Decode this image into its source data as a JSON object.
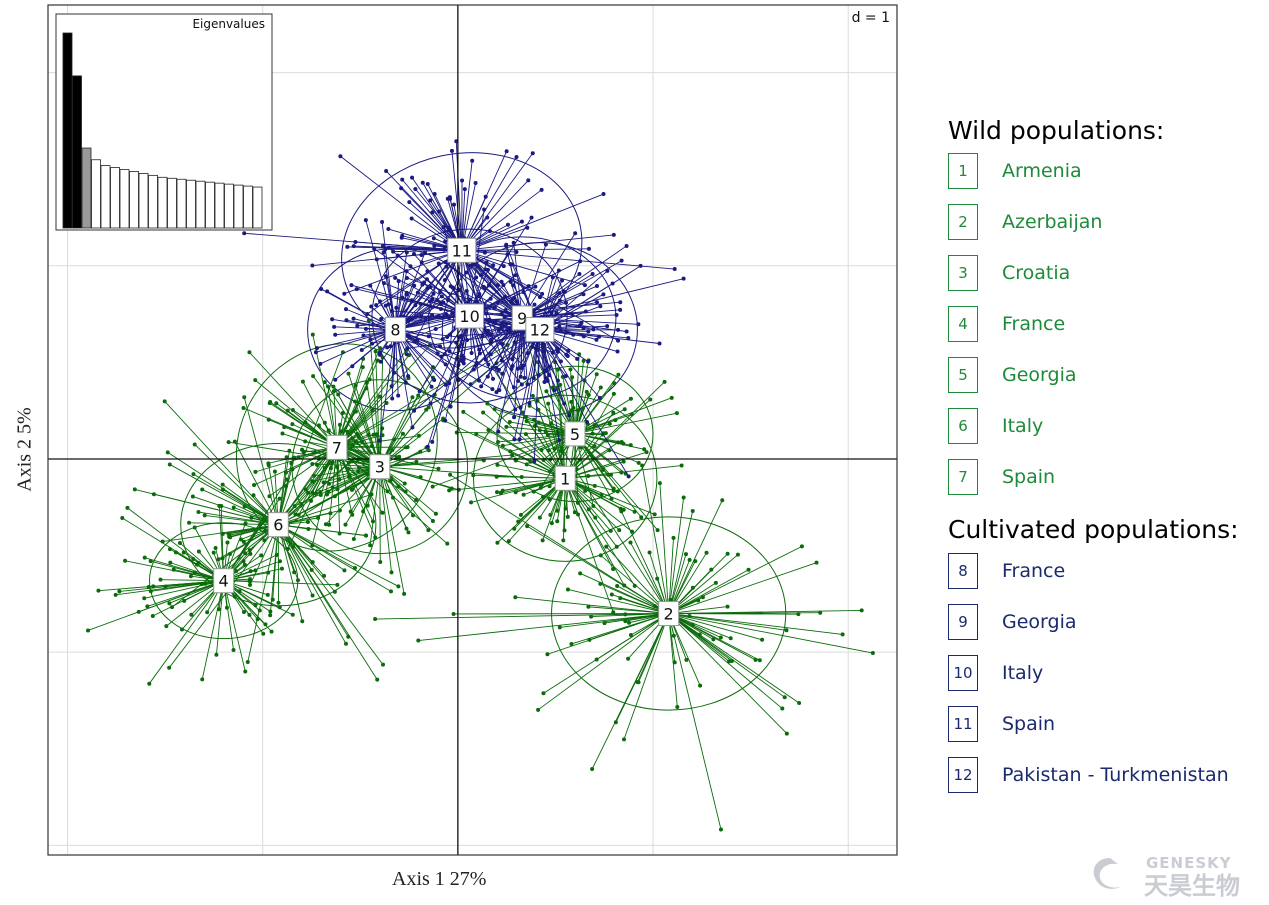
{
  "chart_data": {
    "type": "scatter",
    "subtype": "DAPC scatterplot with group ellipses and centroid labels",
    "xlabel": "Axis 1 27%",
    "ylabel": "Axis 2 5%",
    "scale_label": "d = 1",
    "xlim": [
      -2.1,
      2.25
    ],
    "ylim": [
      -2.05,
      2.35
    ],
    "grid": true,
    "colors": {
      "wild": "#0b6b0b",
      "cultivated": "#1a1a80",
      "wild_legend": "#1f8a3a",
      "cultivated_legend": "#1a2a6c"
    },
    "groups": [
      {
        "label": "1",
        "kind": "wild",
        "centroid": [
          0.55,
          -0.1
        ],
        "spread": [
          0.45,
          0.45
        ],
        "ellipse": [
          0.47,
          0.43,
          0
        ]
      },
      {
        "label": "2",
        "kind": "wild",
        "centroid": [
          1.08,
          -0.8
        ],
        "spread": [
          0.7,
          0.5
        ],
        "ellipse": [
          0.6,
          0.5,
          0
        ]
      },
      {
        "label": "3",
        "kind": "wild",
        "centroid": [
          -0.4,
          -0.04
        ],
        "spread": [
          0.5,
          0.45
        ],
        "ellipse": [
          0.45,
          0.45,
          0
        ]
      },
      {
        "label": "4",
        "kind": "wild",
        "centroid": [
          -1.2,
          -0.63
        ],
        "spread": [
          0.45,
          0.35
        ],
        "ellipse": [
          0.38,
          0.3,
          0
        ]
      },
      {
        "label": "5",
        "kind": "wild",
        "centroid": [
          0.6,
          0.13
        ],
        "spread": [
          0.35,
          0.35
        ],
        "ellipse": [
          0.4,
          0.35,
          0
        ]
      },
      {
        "label": "6",
        "kind": "wild",
        "centroid": [
          -0.92,
          -0.34
        ],
        "spread": [
          0.55,
          0.5
        ],
        "ellipse": [
          0.5,
          0.42,
          0
        ]
      },
      {
        "label": "7",
        "kind": "wild",
        "centroid": [
          -0.62,
          0.06
        ],
        "spread": [
          0.45,
          0.45
        ],
        "ellipse": [
          0.5,
          0.55,
          -0.6
        ]
      },
      {
        "label": "8",
        "kind": "cultivated",
        "centroid": [
          -0.32,
          0.67
        ],
        "spread": [
          0.4,
          0.35
        ],
        "ellipse": [
          0.45,
          0.42,
          0
        ]
      },
      {
        "label": "9",
        "kind": "cultivated",
        "centroid": [
          0.33,
          0.73
        ],
        "spread": [
          0.45,
          0.4
        ],
        "ellipse": [
          0.48,
          0.42,
          0
        ]
      },
      {
        "label": "10",
        "kind": "cultivated",
        "centroid": [
          0.06,
          0.74
        ],
        "spread": [
          0.45,
          0.4
        ],
        "ellipse": [
          0.5,
          0.45,
          0
        ]
      },
      {
        "label": "11",
        "kind": "cultivated",
        "centroid": [
          0.02,
          1.08
        ],
        "spread": [
          0.6,
          0.42
        ],
        "ellipse": [
          0.62,
          0.5,
          0.2
        ]
      },
      {
        "label": "12",
        "kind": "cultivated",
        "centroid": [
          0.42,
          0.67
        ],
        "spread": [
          0.4,
          0.38
        ],
        "ellipse": [
          0.5,
          0.45,
          0
        ]
      }
    ],
    "inset": {
      "title": "Eigenvalues",
      "values": [
        100,
        78,
        41,
        35,
        32,
        31,
        30,
        29,
        28,
        27,
        26,
        25.5,
        25,
        24.5,
        24,
        23.5,
        23,
        22.5,
        22,
        21.5,
        21
      ],
      "fills": [
        "#000000",
        "#000000",
        "#999999",
        "#ffffff",
        "#ffffff",
        "#ffffff",
        "#ffffff",
        "#ffffff",
        "#ffffff",
        "#ffffff",
        "#ffffff",
        "#ffffff",
        "#ffffff",
        "#ffffff",
        "#ffffff",
        "#ffffff",
        "#ffffff",
        "#ffffff",
        "#ffffff",
        "#ffffff",
        "#ffffff"
      ]
    }
  },
  "legend": {
    "wild_title": "Wild populations:",
    "wild": [
      {
        "num": "1",
        "name": "Armenia"
      },
      {
        "num": "2",
        "name": "Azerbaijan"
      },
      {
        "num": "3",
        "name": "Croatia"
      },
      {
        "num": "4",
        "name": "France"
      },
      {
        "num": "5",
        "name": "Georgia"
      },
      {
        "num": "6",
        "name": "Italy"
      },
      {
        "num": "7",
        "name": "Spain"
      }
    ],
    "cultivated_title": "Cultivated populations:",
    "cultivated": [
      {
        "num": "8",
        "name": "France"
      },
      {
        "num": "9",
        "name": "Georgia"
      },
      {
        "num": "10",
        "name": "Italy"
      },
      {
        "num": "11",
        "name": "Spain"
      },
      {
        "num": "12",
        "name": "Pakistan - Turkmenistan"
      }
    ]
  },
  "watermark": {
    "brand_en": "GENESKY",
    "brand_cn": "天昊生物"
  }
}
